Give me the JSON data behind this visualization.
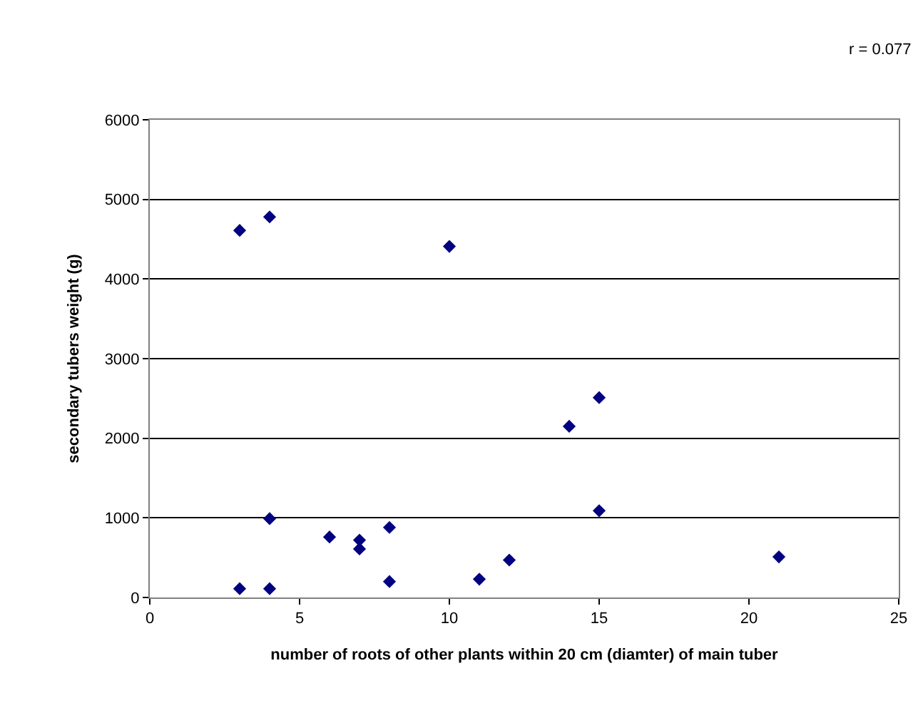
{
  "chart_data": {
    "type": "scatter",
    "xlabel": "number of roots of other plants within 20 cm (diamter) of main tuber",
    "ylabel": "secondary tubers weight (g)",
    "annotations": [
      "r = 0.077"
    ],
    "series": [
      {
        "color": "#000080",
        "x": [
          3,
          4,
          10,
          4,
          6,
          7,
          7,
          8,
          8,
          3,
          4,
          11,
          12,
          15,
          14,
          15,
          21
        ],
        "values": [
          4610,
          4780,
          4410,
          990,
          760,
          720,
          610,
          880,
          200,
          110,
          110,
          230,
          470,
          2510,
          2150,
          1090,
          510
        ]
      }
    ],
    "xlim": [
      0,
      25
    ],
    "xticks": [
      0,
      5,
      10,
      15,
      20,
      25
    ],
    "ylim": [
      0,
      6000
    ],
    "yticks": [
      0,
      1000,
      2000,
      3000,
      4000,
      5000,
      6000
    ],
    "grid": "y",
    "marker": "diamond"
  }
}
